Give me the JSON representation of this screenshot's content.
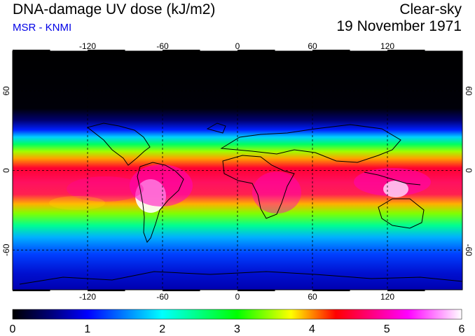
{
  "header": {
    "title": "DNA-damage UV dose (kJ/m2)",
    "credit": "MSR - KNMI",
    "sky_condition": "Clear-sky",
    "date": "19 November 1971"
  },
  "map": {
    "lon_range": [
      -180,
      180
    ],
    "lat_range": [
      -90,
      90
    ],
    "lon_ticks": [
      "-120",
      "-60",
      "0",
      "60",
      "120"
    ],
    "lat_ticks": [
      "60",
      "0",
      "-60"
    ],
    "lon_values": [
      -120,
      -60,
      0,
      60,
      120
    ],
    "lat_values": [
      60,
      0,
      -60
    ]
  },
  "colorbar": {
    "labels": [
      "0",
      "1",
      "2",
      "3",
      "4",
      "5",
      "6"
    ],
    "min": 0,
    "max": 6,
    "unit": "kJ/m2",
    "colors": [
      "#000000",
      "#0000ff",
      "#00ffff",
      "#00ff00",
      "#ffff00",
      "#ff0000",
      "#ff00ff",
      "#ffffff"
    ]
  },
  "colors": {
    "credit": "#0000e6",
    "polar_night": "#000000",
    "high_latitude": "#000080",
    "mid_latitude": "#0050ff",
    "subtropics": "#00ff60",
    "tropics": "#ff2050",
    "peak": "#ffffff"
  }
}
